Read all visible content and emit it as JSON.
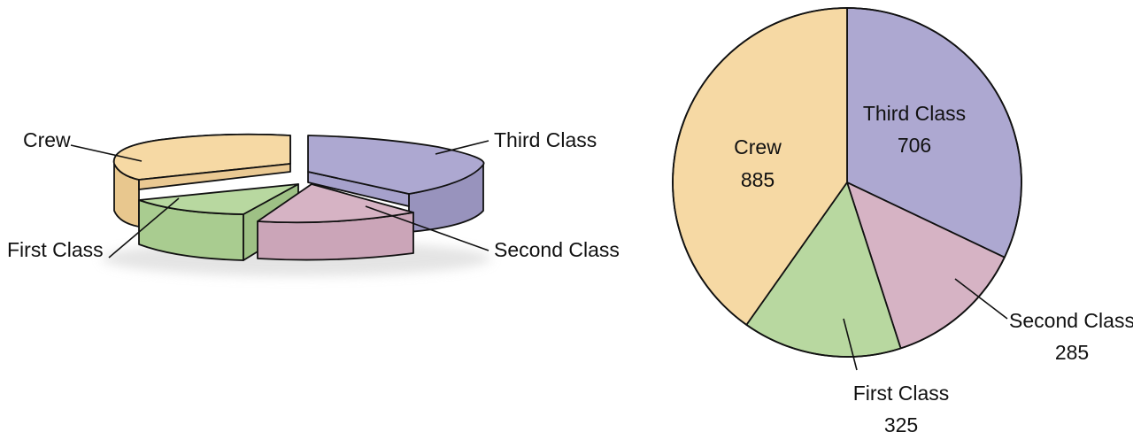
{
  "chart_data": [
    {
      "type": "pie",
      "style": "3d-exploded",
      "categories": [
        "Third Class",
        "Second Class",
        "First Class",
        "Crew"
      ],
      "values": [
        706,
        285,
        325,
        885
      ],
      "colors": [
        "#ada8d1",
        "#d6b3c4",
        "#b8d8a0",
        "#f6d9a4"
      ],
      "labels": [
        "Third Class",
        "Second Class",
        "First Class",
        "Crew"
      ]
    },
    {
      "type": "pie",
      "categories": [
        "Third Class",
        "Second Class",
        "First Class",
        "Crew"
      ],
      "values": [
        706,
        285,
        325,
        885
      ],
      "colors": [
        "#ada8d1",
        "#d6b3c4",
        "#b8d8a0",
        "#f6d9a4"
      ],
      "labels": [
        {
          "name": "Third Class",
          "value": "706"
        },
        {
          "name": "Second Class",
          "value": "285"
        },
        {
          "name": "First Class",
          "value": "325"
        },
        {
          "name": "Crew",
          "value": "885"
        }
      ]
    }
  ]
}
